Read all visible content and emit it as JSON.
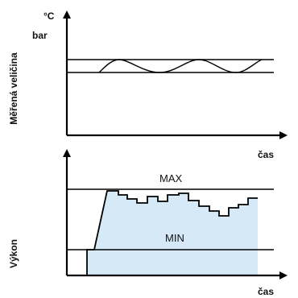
{
  "top_chart": {
    "unit_celsius": "°C",
    "unit_bar": "bar",
    "y_label": "Měřená veličina",
    "x_label": "čas"
  },
  "bottom_chart": {
    "y_label": "Výkon",
    "x_label": "čas",
    "max_label": "MAX",
    "min_label": "MIN"
  },
  "colors": {
    "line": "#000000",
    "fill": "#d6e9f7",
    "fill_stroke": "#8fb3d1"
  }
}
